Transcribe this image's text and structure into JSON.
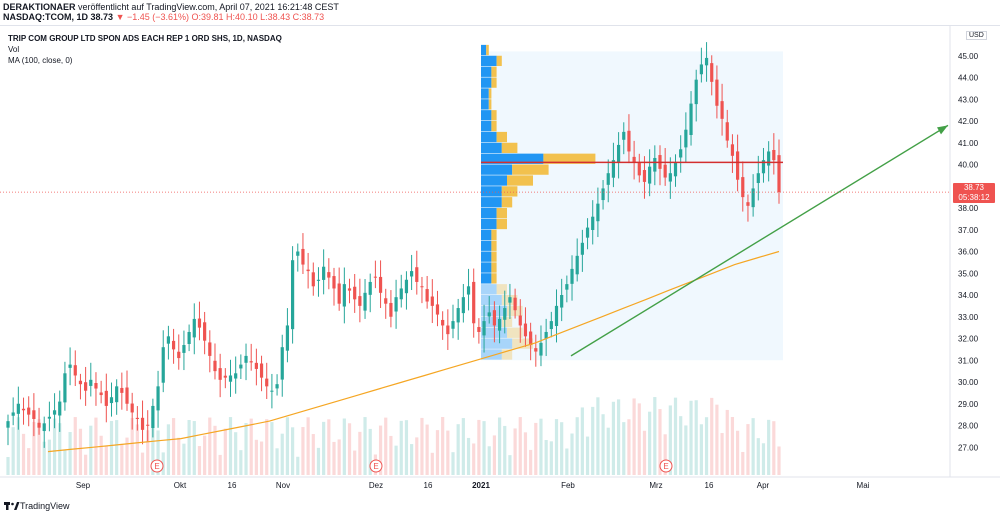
{
  "header": {
    "publisher": "DERAKTIONAER",
    "published_text": "veröffentlicht auf TradingView.com, April 07, 2021 16:21:48 CEST",
    "symbol": "NASDAQ:TCOM, 1D",
    "last": "38.73",
    "change": "▼ −1.45 (−3.61%)",
    "ohlc": "O:39.81 H:40.10 L:38.43 C:38.73"
  },
  "legend": {
    "title": "TRIP COM GROUP LTD SPON ADS EACH REP 1 ORD SHS, 1D, NASDAQ",
    "vol": "Vol",
    "ma": "MA (100, close, 0)"
  },
  "price_axis": {
    "currency": "USD",
    "current_price": "38.73",
    "countdown": "05:38:12"
  },
  "footer": {
    "brand": "TradingView"
  },
  "colors": {
    "up": "#26a69a",
    "down": "#ef5350",
    "ma": "#f5a623",
    "trendline": "#43a047",
    "poc_line": "#d32f2f",
    "vp_up": "#2196f3",
    "vp_down": "#f2c14e"
  },
  "chart_data": {
    "type": "candlestick",
    "title": "TRIP COM GROUP LTD SPON ADS EACH REP 1 ORD SHS, 1D, NASDAQ",
    "ylim": [
      26,
      46
    ],
    "y_ticks": [
      27.0,
      28.0,
      29.0,
      30.0,
      31.0,
      32.0,
      33.0,
      34.0,
      35.0,
      36.0,
      37.0,
      38.0,
      39.0,
      40.0,
      41.0,
      42.0,
      43.0,
      44.0,
      45.0
    ],
    "x_ticks": [
      "Sep",
      "Okt",
      "16",
      "Nov",
      "Dez",
      "16",
      "2021",
      "Feb",
      "Mrz",
      "16",
      "Apr",
      "Mai"
    ],
    "earnings_markers": [
      "E",
      "E",
      "E"
    ],
    "close": [
      28.2,
      28.6,
      29.0,
      28.7,
      28.5,
      28.3,
      27.9,
      28.1,
      28.4,
      28.7,
      29.1,
      30.4,
      30.8,
      30.3,
      29.9,
      29.6,
      30.1,
      29.7,
      29.4,
      28.9,
      29.3,
      29.8,
      29.5,
      29.0,
      28.6,
      28.3,
      27.8,
      28.0,
      28.9,
      29.8,
      31.6,
      32.1,
      31.5,
      31.1,
      31.7,
      32.3,
      32.9,
      32.5,
      31.9,
      31.2,
      30.5,
      30.1,
      30.2,
      30.3,
      30.4,
      30.8,
      31.2,
      30.9,
      30.6,
      30.2,
      29.8,
      29.6,
      29.9,
      31.6,
      32.6,
      35.6,
      36.0,
      35.4,
      35.1,
      34.4,
      34.7,
      35.3,
      34.8,
      34.3,
      33.6,
      34.5,
      34.2,
      33.8,
      33.5,
      34.1,
      34.6,
      34.8,
      34.1,
      33.6,
      33.0,
      33.9,
      34.3,
      34.7,
      35.1,
      34.6,
      34.4,
      33.7,
      33.5,
      33.1,
      32.6,
      32.2,
      32.8,
      33.4,
      33.9,
      34.4,
      32.7,
      32.3,
      32.8,
      33.2,
      32.6,
      32.9,
      33.4,
      33.9,
      33.3,
      32.6,
      32.1,
      31.7,
      31.4,
      31.8,
      32.3,
      32.8,
      33.5,
      34.0,
      34.5,
      35.2,
      35.8,
      36.4,
      37.1,
      37.6,
      38.2,
      38.9,
      39.6,
      40.2,
      40.9,
      41.5,
      40.6,
      40.1,
      39.5,
      39.2,
      39.9,
      40.3,
      39.8,
      39.4,
      39.6,
      40.1,
      40.7,
      41.6,
      42.8,
      43.9,
      44.6,
      44.9,
      43.8,
      42.7,
      42.1,
      41.1,
      40.4,
      39.3,
      38.5,
      38.1,
      38.9,
      39.6,
      40.2,
      40.6,
      40.2,
      38.73
    ],
    "ma100": [
      26.8,
      26.9,
      27.0,
      27.1,
      27.2,
      27.3,
      27.4,
      27.6,
      27.8,
      28.0,
      28.2,
      28.5,
      28.8,
      29.1,
      29.4,
      29.7,
      30.0,
      30.3,
      30.6,
      30.9,
      31.2,
      31.5,
      31.8,
      32.2,
      32.6,
      33.0,
      33.4,
      33.8,
      34.2,
      34.6,
      35.0,
      35.4,
      35.7,
      36.0
    ],
    "trendline": [
      [
        31.2,
        "2021-01-29"
      ],
      [
        41.8,
        "2021-05-31"
      ]
    ],
    "poc_price": 40.1,
    "volume_profile": {
      "price_levels": [
        31.0,
        31.5,
        32.0,
        32.5,
        33.0,
        33.5,
        34.0,
        34.5,
        35.0,
        35.5,
        36.0,
        36.5,
        37.0,
        37.5,
        38.0,
        38.5,
        39.0,
        39.5,
        40.0,
        40.5,
        41.0,
        41.5,
        42.0,
        42.5,
        43.0,
        43.5,
        44.0,
        44.5,
        45.0
      ],
      "buy": [
        4,
        6,
        5,
        4,
        5,
        4,
        3,
        2,
        2,
        2,
        2,
        2,
        3,
        3,
        4,
        4,
        5,
        6,
        12,
        4,
        3,
        2,
        2,
        1.5,
        1.5,
        2,
        2,
        3,
        1
      ],
      "sell": [
        2,
        4,
        3,
        2,
        3,
        3,
        2,
        1,
        1,
        1,
        1,
        1,
        2,
        2,
        2,
        3,
        5,
        7,
        10,
        3,
        2,
        1,
        1,
        0.5,
        0.5,
        1,
        1,
        1,
        0.5
      ]
    }
  }
}
